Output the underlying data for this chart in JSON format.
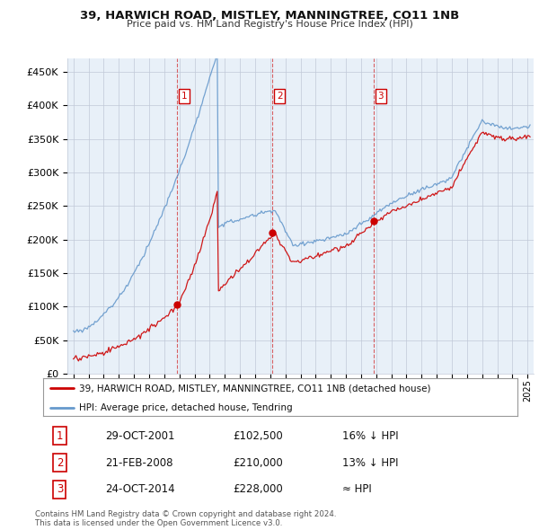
{
  "title": "39, HARWICH ROAD, MISTLEY, MANNINGTREE, CO11 1NB",
  "subtitle": "Price paid vs. HM Land Registry's House Price Index (HPI)",
  "ylabel_ticks": [
    "£0",
    "£50K",
    "£100K",
    "£150K",
    "£200K",
    "£250K",
    "£300K",
    "£350K",
    "£400K",
    "£450K"
  ],
  "ytick_values": [
    0,
    50000,
    100000,
    150000,
    200000,
    250000,
    300000,
    350000,
    400000,
    450000
  ],
  "ylim": [
    0,
    470000
  ],
  "xlim_start": 1994.6,
  "xlim_end": 2025.4,
  "sales": [
    {
      "date": 2001.83,
      "price": 102500,
      "label": "1",
      "text_date": "29-OCT-2001",
      "text_price": "£102,500",
      "text_rel": "16% ↓ HPI"
    },
    {
      "date": 2008.12,
      "price": 210000,
      "label": "2",
      "text_date": "21-FEB-2008",
      "text_price": "£210,000",
      "text_rel": "13% ↓ HPI"
    },
    {
      "date": 2014.81,
      "price": 228000,
      "label": "3",
      "text_date": "24-OCT-2014",
      "text_price": "£228,000",
      "text_rel": "≈ HPI"
    }
  ],
  "legend_line1": "39, HARWICH ROAD, MISTLEY, MANNINGTREE, CO11 1NB (detached house)",
  "legend_line2": "HPI: Average price, detached house, Tendring",
  "footer1": "Contains HM Land Registry data © Crown copyright and database right 2024.",
  "footer2": "This data is licensed under the Open Government Licence v3.0.",
  "red_color": "#cc0000",
  "blue_color": "#6699cc",
  "chart_bg": "#e8f0f8",
  "bg_color": "#ffffff",
  "grid_color": "#c0c8d8"
}
